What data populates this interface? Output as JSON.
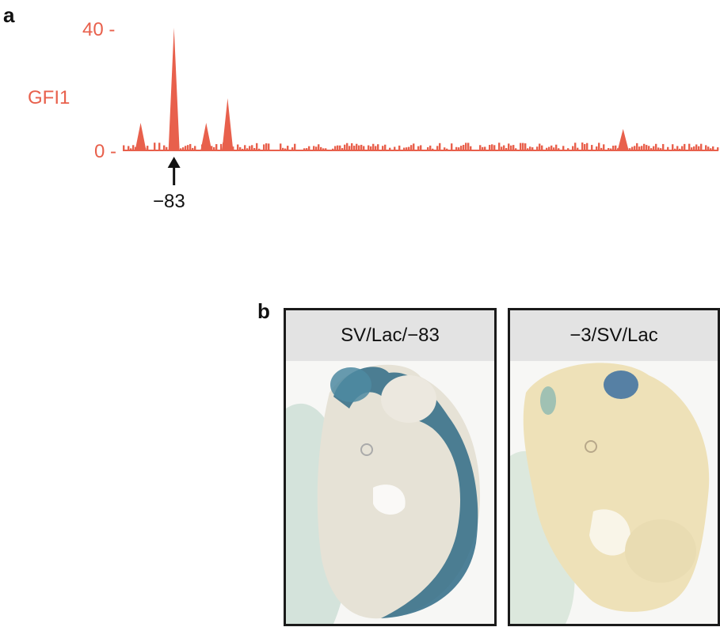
{
  "figure": {
    "panel_a_label": "a",
    "panel_b_label": "b"
  },
  "chart_data": {
    "type": "bar",
    "track_name": "GFI1",
    "ylim": [
      0,
      40
    ],
    "yticks": [
      "40 -",
      "0 -"
    ],
    "annotation": {
      "label": "−83",
      "arrow": "up"
    },
    "peaks": [
      {
        "position": 0.086,
        "value": 40
      },
      {
        "position": 0.176,
        "value": 17
      },
      {
        "position": 0.03,
        "value": 9
      },
      {
        "position": 0.14,
        "value": 9
      },
      {
        "position": 0.84,
        "value": 7
      }
    ],
    "color": "#e8604c"
  },
  "panel_b": {
    "left_title": "SV/Lac/−83",
    "right_title": "−3/SV/Lac"
  }
}
